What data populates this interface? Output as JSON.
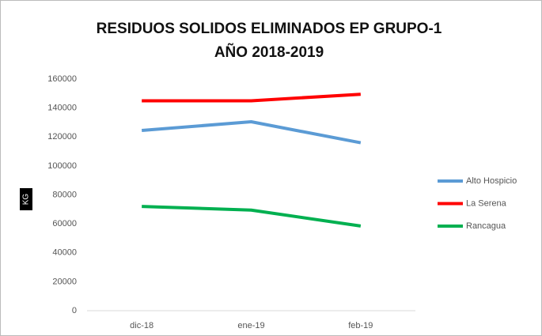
{
  "chart_data": {
    "type": "line",
    "title": "RESIDUOS SOLIDOS ELIMINADOS EP GRUPO-1 AÑO 2018-2019",
    "y_label": "KG",
    "categories": [
      "dic-18",
      "ene-19",
      "feb-19"
    ],
    "series": [
      {
        "name": "Alto Hospicio",
        "color": "#5b9bd5",
        "values": [
          124500,
          130500,
          116000
        ]
      },
      {
        "name": "La Serena",
        "color": "#ff0000",
        "values": [
          145000,
          145000,
          149500
        ]
      },
      {
        "name": "Rancagua",
        "color": "#00b050",
        "values": [
          72000,
          69500,
          58500
        ]
      }
    ],
    "ylim": [
      0,
      160000
    ],
    "yticks": [
      0,
      20000,
      40000,
      60000,
      80000,
      100000,
      120000,
      140000,
      160000
    ],
    "grid": false,
    "legend": "right"
  }
}
